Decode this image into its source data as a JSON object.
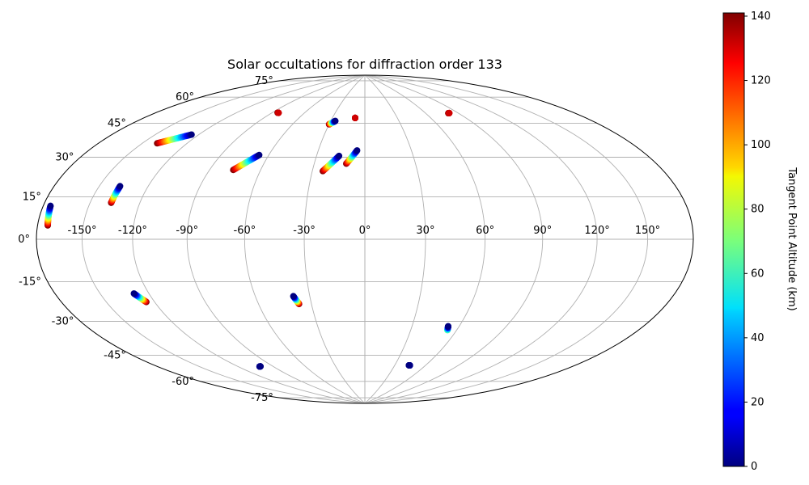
{
  "chart_data": {
    "type": "scatter",
    "projection": "hammer",
    "title": "Solar occultations for diffraction order 133",
    "grid": true,
    "lon_ticks": [
      -150,
      -120,
      -90,
      -60,
      -30,
      0,
      30,
      60,
      90,
      120,
      150
    ],
    "lat_ticks": [
      -75,
      -60,
      -45,
      -30,
      -15,
      0,
      15,
      30,
      45,
      60,
      75
    ],
    "lon_tick_labels": [
      "-150°",
      "-120°",
      "-90°",
      "-60°",
      "-30°",
      "0°",
      "30°",
      "60°",
      "90°",
      "120°",
      "150°"
    ],
    "lat_tick_labels": [
      "-75°",
      "-60°",
      "-45°",
      "-30°",
      "-15°",
      "0°",
      "15°",
      "30°",
      "45°",
      "60°",
      "75°"
    ],
    "colorbar": {
      "label": "Tangent Point Altitude (km)",
      "range": [
        0,
        141
      ],
      "ticks": [
        0,
        20,
        40,
        60,
        80,
        100,
        120,
        140
      ],
      "tick_labels": [
        "0",
        "20",
        "40",
        "60",
        "80",
        "100",
        "120",
        "140"
      ],
      "colormap": "jet"
    },
    "tracks": [
      {
        "lon_start": -140,
        "lat_start": 41,
        "alt_start": 141,
        "lon_end": -125,
        "lat_end": 47,
        "alt_end": 0
      },
      {
        "lon_start": -137,
        "lat_start": 15,
        "alt_start": 141,
        "lon_end": -137,
        "lat_end": 22,
        "alt_end": 0
      },
      {
        "lon_start": -173,
        "lat_start": 5,
        "alt_start": 141,
        "lon_end": -175,
        "lat_end": 12,
        "alt_end": 0
      },
      {
        "lon_start": -85,
        "lat_start": 63,
        "alt_start": 141,
        "lon_end": -84,
        "lat_end": 63,
        "alt_end": 130
      },
      {
        "lon_start": -76,
        "lat_start": 33,
        "alt_start": 141,
        "lon_end": -66,
        "lat_end": 41,
        "alt_end": 0
      },
      {
        "lon_start": -30,
        "lat_start": 59,
        "alt_start": 141,
        "lon_end": -26,
        "lat_end": 61,
        "alt_end": 0
      },
      {
        "lon_start": -9,
        "lat_start": 63,
        "alt_start": 141,
        "lon_end": -9,
        "lat_end": 63,
        "alt_end": 130
      },
      {
        "lon_start": -24,
        "lat_start": 34,
        "alt_start": 141,
        "lon_end": -16,
        "lat_end": 42,
        "alt_end": 0
      },
      {
        "lon_start": -11,
        "lat_start": 38,
        "alt_start": 141,
        "lon_end": -5,
        "lat_end": 45,
        "alt_end": 0
      },
      {
        "lon_start": 81,
        "lat_start": 63,
        "alt_start": 141,
        "lon_end": 82,
        "lat_end": 63,
        "alt_end": 130
      },
      {
        "lon_start": -125,
        "lat_start": -27,
        "alt_start": 141,
        "lon_end": -129,
        "lat_end": -23,
        "alt_end": 0
      },
      {
        "lon_start": -37,
        "lat_start": -32,
        "alt_start": 141,
        "lon_end": -39,
        "lat_end": -28,
        "alt_end": 0
      },
      {
        "lon_start": 54,
        "lat_start": -45,
        "alt_start": 70,
        "lon_end": 53,
        "lat_end": -43,
        "alt_end": 0
      },
      {
        "lon_start": 45,
        "lat_start": -65,
        "alt_start": 5,
        "lon_end": 44,
        "lat_end": -65,
        "alt_end": 0
      },
      {
        "lon_start": -102,
        "lat_start": -62,
        "alt_start": 5,
        "lon_end": -101,
        "lat_end": -62,
        "alt_end": 0
      }
    ]
  }
}
